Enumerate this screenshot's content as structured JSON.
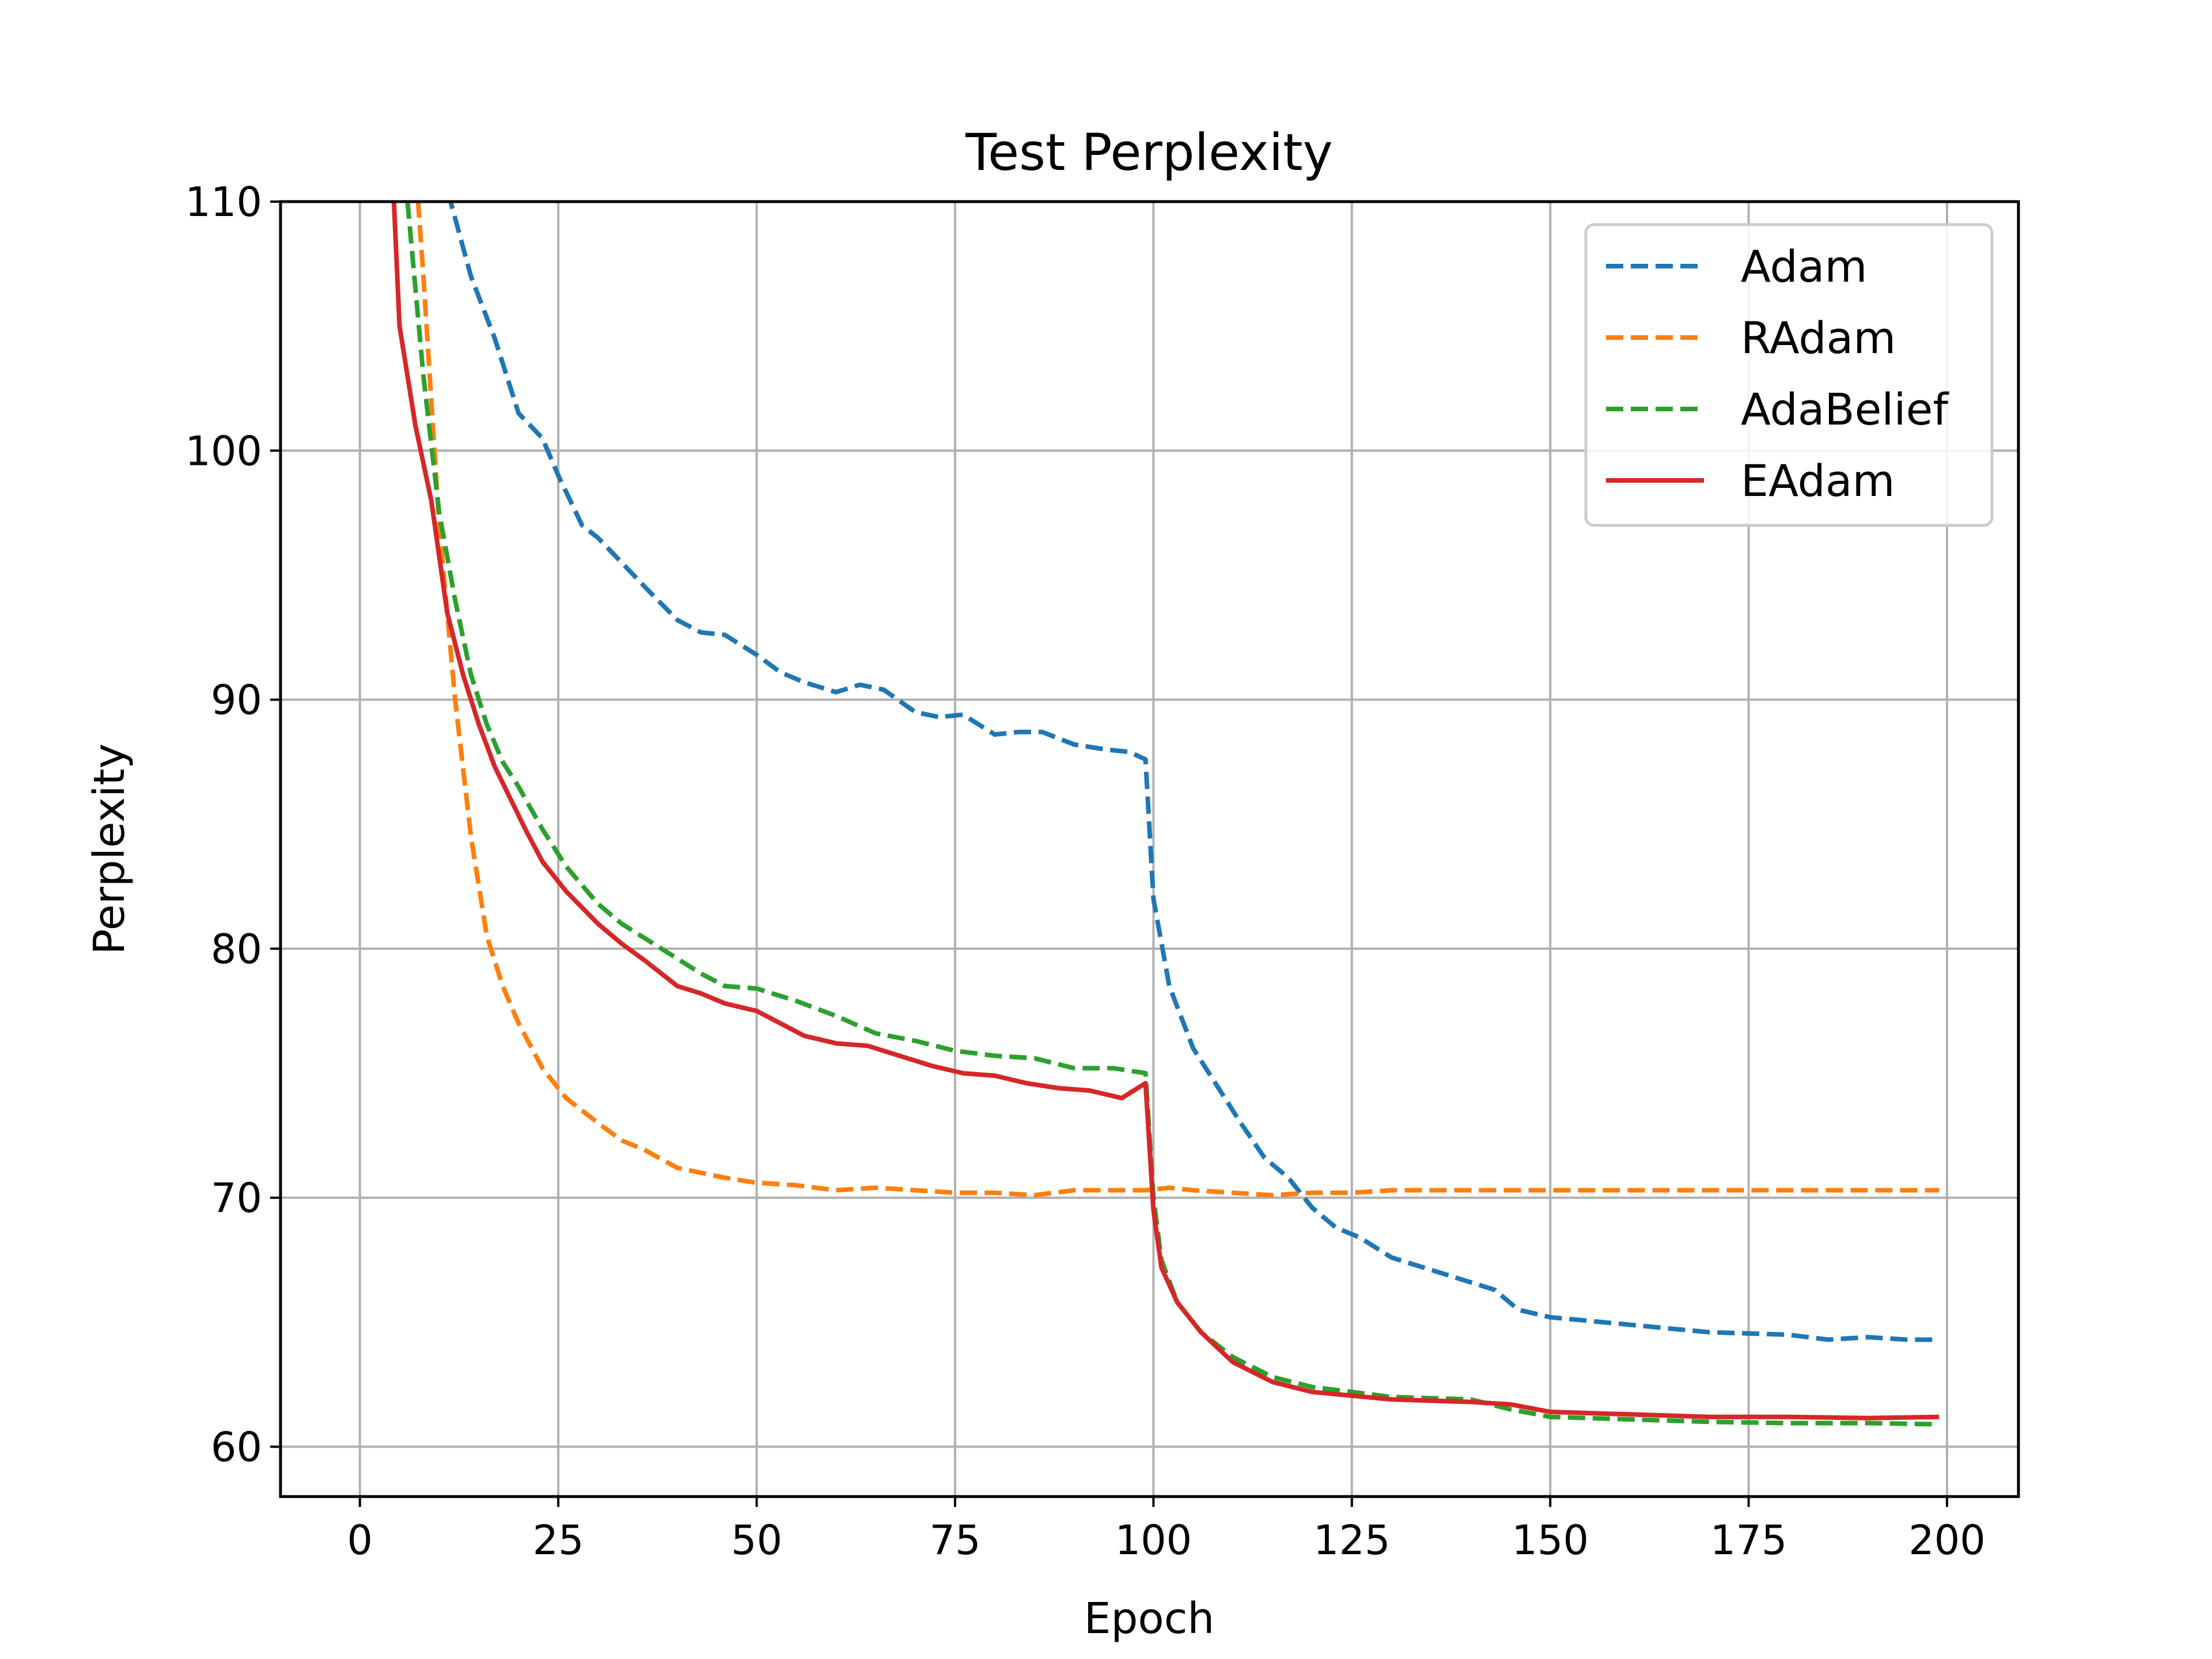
{
  "chart_data": {
    "type": "line",
    "title": "Test Perplexity",
    "xlabel": "Epoch",
    "ylabel": "Perplexity",
    "xlim": [
      -10,
      209
    ],
    "ylim": [
      58,
      110
    ],
    "xticks": [
      0,
      25,
      50,
      75,
      100,
      125,
      150,
      175,
      200
    ],
    "yticks": [
      60,
      70,
      80,
      90,
      100,
      110
    ],
    "grid": true,
    "legend_position": "top-right",
    "series": [
      {
        "name": "Adam",
        "color": "#1f77b4",
        "dashed": true,
        "points": [
          [
            5,
            116
          ],
          [
            8,
            114
          ],
          [
            11,
            110.5
          ],
          [
            14,
            107
          ],
          [
            17,
            104.5
          ],
          [
            20,
            101.5
          ],
          [
            23,
            100.5
          ],
          [
            25,
            99
          ],
          [
            28,
            97
          ],
          [
            30,
            96.5
          ],
          [
            33,
            95.5
          ],
          [
            36,
            94.5
          ],
          [
            40,
            93.2
          ],
          [
            43,
            92.7
          ],
          [
            46,
            92.6
          ],
          [
            50,
            91.8
          ],
          [
            53,
            91.1
          ],
          [
            56,
            90.7
          ],
          [
            60,
            90.3
          ],
          [
            63,
            90.6
          ],
          [
            66,
            90.4
          ],
          [
            70,
            89.5
          ],
          [
            73,
            89.3
          ],
          [
            76,
            89.4
          ],
          [
            80,
            88.6
          ],
          [
            83,
            88.7
          ],
          [
            86,
            88.7
          ],
          [
            90,
            88.2
          ],
          [
            94,
            88.0
          ],
          [
            97,
            87.9
          ],
          [
            99,
            87.6
          ],
          [
            100,
            82
          ],
          [
            102,
            78.5
          ],
          [
            105,
            76
          ],
          [
            108,
            74.5
          ],
          [
            111,
            73
          ],
          [
            114,
            71.6
          ],
          [
            117,
            70.8
          ],
          [
            120,
            69.6
          ],
          [
            123,
            68.8
          ],
          [
            126,
            68.4
          ],
          [
            130,
            67.6
          ],
          [
            133,
            67.3
          ],
          [
            136,
            67.0
          ],
          [
            140,
            66.6
          ],
          [
            143,
            66.3
          ],
          [
            146,
            65.5
          ],
          [
            150,
            65.2
          ],
          [
            160,
            64.9
          ],
          [
            170,
            64.6
          ],
          [
            180,
            64.5
          ],
          [
            185,
            64.3
          ],
          [
            190,
            64.4
          ],
          [
            195,
            64.3
          ],
          [
            199,
            64.3
          ]
        ]
      },
      {
        "name": "RAdam",
        "color": "#ff7f0e",
        "dashed": true,
        "points": [
          [
            6,
            116
          ],
          [
            8,
            107
          ],
          [
            10,
            97
          ],
          [
            12,
            90
          ],
          [
            14,
            84.5
          ],
          [
            16,
            80.5
          ],
          [
            18,
            78.5
          ],
          [
            20,
            77
          ],
          [
            23,
            75.2
          ],
          [
            26,
            74
          ],
          [
            30,
            73
          ],
          [
            33,
            72.3
          ],
          [
            36,
            71.9
          ],
          [
            40,
            71.2
          ],
          [
            43,
            71.0
          ],
          [
            46,
            70.8
          ],
          [
            50,
            70.6
          ],
          [
            55,
            70.5
          ],
          [
            60,
            70.3
          ],
          [
            65,
            70.4
          ],
          [
            70,
            70.3
          ],
          [
            75,
            70.2
          ],
          [
            80,
            70.2
          ],
          [
            85,
            70.1
          ],
          [
            90,
            70.3
          ],
          [
            95,
            70.3
          ],
          [
            99,
            70.3
          ],
          [
            102,
            70.4
          ],
          [
            105,
            70.3
          ],
          [
            110,
            70.2
          ],
          [
            115,
            70.1
          ],
          [
            120,
            70.2
          ],
          [
            125,
            70.2
          ],
          [
            130,
            70.3
          ],
          [
            140,
            70.3
          ],
          [
            150,
            70.3
          ],
          [
            160,
            70.3
          ],
          [
            170,
            70.3
          ],
          [
            180,
            70.3
          ],
          [
            190,
            70.3
          ],
          [
            199,
            70.3
          ]
        ]
      },
      {
        "name": "AdaBelief",
        "color": "#2ca02c",
        "dashed": true,
        "points": [
          [
            6,
            110
          ],
          [
            8,
            103
          ],
          [
            10,
            97.5
          ],
          [
            12,
            94
          ],
          [
            14,
            91
          ],
          [
            16,
            89
          ],
          [
            18,
            87.5
          ],
          [
            20,
            86.5
          ],
          [
            23,
            84.8
          ],
          [
            26,
            83.3
          ],
          [
            30,
            81.8
          ],
          [
            33,
            81
          ],
          [
            36,
            80.4
          ],
          [
            40,
            79.6
          ],
          [
            43,
            79
          ],
          [
            46,
            78.5
          ],
          [
            50,
            78.4
          ],
          [
            55,
            77.9
          ],
          [
            60,
            77.3
          ],
          [
            65,
            76.6
          ],
          [
            70,
            76.3
          ],
          [
            75,
            75.9
          ],
          [
            80,
            75.7
          ],
          [
            85,
            75.6
          ],
          [
            90,
            75.2
          ],
          [
            95,
            75.2
          ],
          [
            99,
            75.0
          ],
          [
            100,
            70
          ],
          [
            101,
            67.5
          ],
          [
            103,
            65.8
          ],
          [
            106,
            64.6
          ],
          [
            110,
            63.6
          ],
          [
            115,
            62.8
          ],
          [
            120,
            62.4
          ],
          [
            130,
            62.0
          ],
          [
            140,
            61.9
          ],
          [
            145,
            61.5
          ],
          [
            150,
            61.2
          ],
          [
            160,
            61.1
          ],
          [
            170,
            61.0
          ],
          [
            180,
            60.95
          ],
          [
            190,
            60.95
          ],
          [
            199,
            60.9
          ]
        ]
      },
      {
        "name": "EAdam",
        "color": "#d62728",
        "dashed": false,
        "points": [
          [
            4,
            112
          ],
          [
            5,
            105
          ],
          [
            7,
            101
          ],
          [
            9,
            98
          ],
          [
            11,
            93.5
          ],
          [
            13,
            91
          ],
          [
            15,
            89
          ],
          [
            17,
            87.3
          ],
          [
            19,
            86
          ],
          [
            21,
            84.7
          ],
          [
            23,
            83.5
          ],
          [
            26,
            82.3
          ],
          [
            30,
            81
          ],
          [
            33,
            80.2
          ],
          [
            36,
            79.5
          ],
          [
            40,
            78.5
          ],
          [
            43,
            78.2
          ],
          [
            46,
            77.8
          ],
          [
            50,
            77.5
          ],
          [
            53,
            77.0
          ],
          [
            56,
            76.5
          ],
          [
            60,
            76.2
          ],
          [
            64,
            76.1
          ],
          [
            68,
            75.7
          ],
          [
            72,
            75.3
          ],
          [
            76,
            75.0
          ],
          [
            80,
            74.9
          ],
          [
            84,
            74.6
          ],
          [
            88,
            74.4
          ],
          [
            92,
            74.3
          ],
          [
            96,
            74.0
          ],
          [
            99,
            74.6
          ],
          [
            100,
            69.5
          ],
          [
            101,
            67.2
          ],
          [
            103,
            65.8
          ],
          [
            106,
            64.6
          ],
          [
            110,
            63.4
          ],
          [
            115,
            62.6
          ],
          [
            120,
            62.2
          ],
          [
            130,
            61.9
          ],
          [
            140,
            61.8
          ],
          [
            145,
            61.7
          ],
          [
            150,
            61.4
          ],
          [
            160,
            61.3
          ],
          [
            170,
            61.2
          ],
          [
            180,
            61.2
          ],
          [
            190,
            61.15
          ],
          [
            199,
            61.2
          ]
        ]
      }
    ]
  }
}
